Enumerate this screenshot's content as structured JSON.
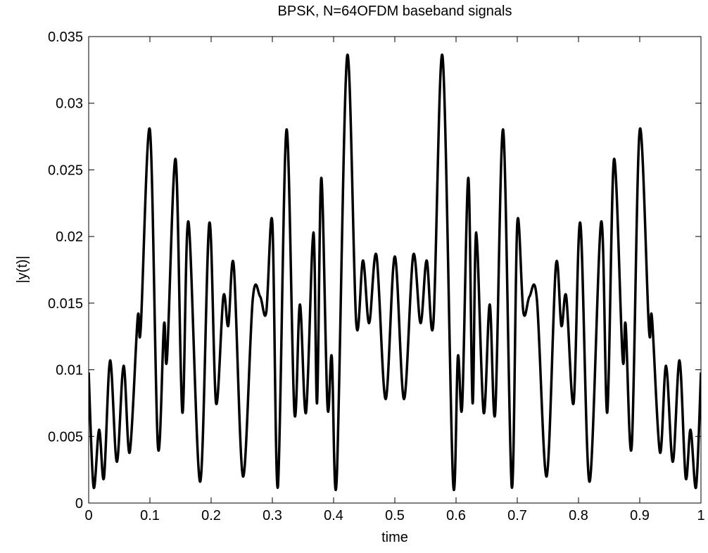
{
  "chart_data": {
    "type": "line",
    "title": "BPSK, N=64OFDM baseband signals",
    "xlabel": "time",
    "ylabel": "|y(t)|",
    "x": [
      0,
      0.008,
      0.017,
      0.025,
      0.035,
      0.046,
      0.057,
      0.067,
      0.08,
      0.085,
      0.1,
      0.113,
      0.123,
      0.128,
      0.142,
      0.153,
      0.163,
      0.182,
      0.197,
      0.208,
      0.22,
      0.228,
      0.237,
      0.252,
      0.268,
      0.28,
      0.29,
      0.3,
      0.309,
      0.323,
      0.336,
      0.345,
      0.355,
      0.367,
      0.373,
      0.38,
      0.39,
      0.397,
      0.405,
      0.422,
      0.437,
      0.448,
      0.458,
      0.47,
      0.485,
      0.5,
      0.515,
      0.53,
      0.542,
      0.552,
      0.563,
      0.578,
      0.595,
      0.603,
      0.61,
      0.62,
      0.627,
      0.633,
      0.645,
      0.655,
      0.664,
      0.677,
      0.691,
      0.7,
      0.71,
      0.72,
      0.732,
      0.748,
      0.763,
      0.772,
      0.78,
      0.792,
      0.803,
      0.818,
      0.837,
      0.847,
      0.858,
      0.872,
      0.877,
      0.887,
      0.9,
      0.915,
      0.92,
      0.933,
      0.943,
      0.954,
      0.965,
      0.975,
      0.983,
      0.992,
      1
    ],
    "series": [
      {
        "name": "|y(t)|",
        "color": "#000000",
        "values": [
          0.0098,
          0.0012,
          0.0055,
          0.0019,
          0.0107,
          0.0031,
          0.0103,
          0.0038,
          0.0139,
          0.0131,
          0.028,
          0.0043,
          0.0134,
          0.0109,
          0.0258,
          0.0068,
          0.0211,
          0.0016,
          0.021,
          0.0075,
          0.0155,
          0.0133,
          0.0178,
          0.002,
          0.0153,
          0.0155,
          0.0143,
          0.021,
          0.0012,
          0.028,
          0.0068,
          0.0149,
          0.0068,
          0.0203,
          0.0075,
          0.0244,
          0.0073,
          0.011,
          0.0017,
          0.0335,
          0.0135,
          0.0182,
          0.0135,
          0.0186,
          0.0078,
          0.0185,
          0.0078,
          0.0186,
          0.0135,
          0.0182,
          0.0135,
          0.0335,
          0.0017,
          0.011,
          0.0073,
          0.0244,
          0.0075,
          0.0203,
          0.0068,
          0.0149,
          0.0068,
          0.028,
          0.0012,
          0.021,
          0.0143,
          0.0155,
          0.0153,
          0.002,
          0.0178,
          0.0133,
          0.0155,
          0.0075,
          0.021,
          0.0016,
          0.0211,
          0.0068,
          0.0258,
          0.0109,
          0.0134,
          0.0043,
          0.028,
          0.0131,
          0.0139,
          0.0038,
          0.0103,
          0.0031,
          0.0107,
          0.0019,
          0.0055,
          0.0012,
          0.0098
        ]
      }
    ],
    "xlim": [
      0,
      1
    ],
    "ylim": [
      0,
      0.035
    ],
    "xticks": [
      0,
      0.1,
      0.2,
      0.3,
      0.4,
      0.5,
      0.6,
      0.7,
      0.8,
      0.9,
      1
    ],
    "yticks": [
      0,
      0.005,
      0.01,
      0.015,
      0.02,
      0.025,
      0.03,
      0.035
    ],
    "grid": false
  }
}
